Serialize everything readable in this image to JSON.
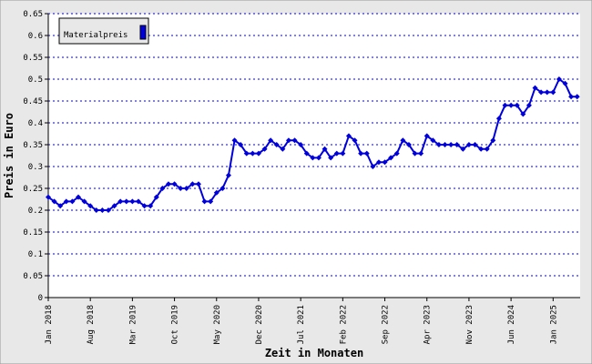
{
  "chart_data": {
    "type": "line",
    "x_label": "Zeit in Monaten",
    "y_label": "Preis in Euro",
    "categories": [
      "Jan 2018",
      null,
      null,
      null,
      null,
      null,
      null,
      "Aug 2018",
      null,
      null,
      null,
      null,
      null,
      null,
      "Mar 2019",
      null,
      null,
      null,
      null,
      null,
      null,
      "Oct 2019",
      null,
      null,
      null,
      null,
      null,
      null,
      "May 2020",
      null,
      null,
      null,
      null,
      null,
      null,
      "Dec 2020",
      null,
      null,
      null,
      null,
      null,
      null,
      "Jul 2021",
      null,
      null,
      null,
      null,
      null,
      null,
      "Feb 2022",
      null,
      null,
      null,
      null,
      null,
      null,
      "Sep 2022",
      null,
      null,
      null,
      null,
      null,
      null,
      "Apr 2023",
      null,
      null,
      null,
      null,
      null,
      null,
      "Nov 2023",
      null,
      null,
      null,
      null,
      null,
      null,
      "Jun 2024",
      null,
      null,
      null,
      null,
      null,
      null,
      "Jan 2025",
      null,
      null,
      null,
      null
    ],
    "series": [
      {
        "name": "Materialpreis",
        "color": "#0000dd",
        "values": [
          0.23,
          0.22,
          0.21,
          0.22,
          0.22,
          0.23,
          0.22,
          0.21,
          0.2,
          0.2,
          0.2,
          0.21,
          0.22,
          0.22,
          0.22,
          0.22,
          0.21,
          0.21,
          0.23,
          0.25,
          0.26,
          0.26,
          0.25,
          0.25,
          0.26,
          0.26,
          0.22,
          0.22,
          0.24,
          0.25,
          0.28,
          0.36,
          0.35,
          0.33,
          0.33,
          0.33,
          0.34,
          0.36,
          0.35,
          0.34,
          0.36,
          0.36,
          0.35,
          0.33,
          0.32,
          0.32,
          0.34,
          0.32,
          0.33,
          0.33,
          0.37,
          0.36,
          0.33,
          0.33,
          0.3,
          0.31,
          0.31,
          0.32,
          0.33,
          0.36,
          0.35,
          0.33,
          0.33,
          0.37,
          0.36,
          0.35,
          0.35,
          0.35,
          0.35,
          0.34,
          0.35,
          0.35,
          0.34,
          0.34,
          0.36,
          0.41,
          0.44,
          0.44,
          0.44,
          0.42,
          0.44,
          0.48,
          0.47,
          0.47,
          0.47,
          0.5,
          0.49,
          0.46,
          0.46
        ]
      }
    ],
    "ylim": [
      0,
      0.65
    ],
    "yticks": [
      0,
      0.05,
      0.1,
      0.15,
      0.2,
      0.25,
      0.3,
      0.35,
      0.4,
      0.45,
      0.5,
      0.55,
      0.6,
      0.65
    ],
    "grid": true,
    "legend": "top-left"
  }
}
